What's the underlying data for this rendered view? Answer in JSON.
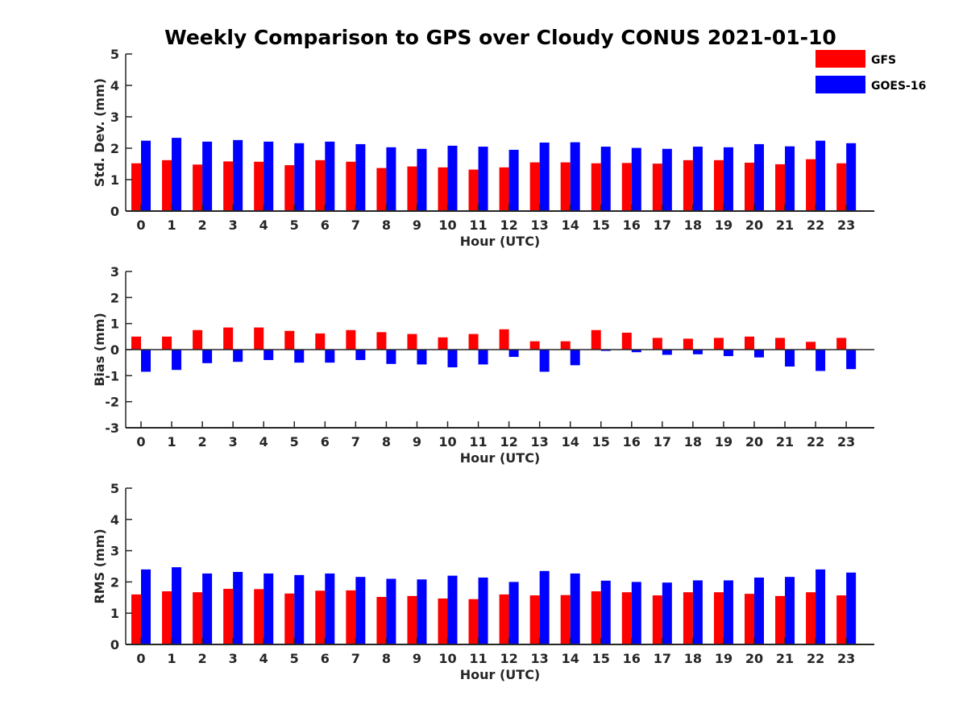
{
  "figure": {
    "title": "Weekly Comparison to GPS over Cloudy CONUS 2021-01-10"
  },
  "legend": {
    "placement": "top-right",
    "items": [
      {
        "label": "GFS",
        "color": "#ff0000"
      },
      {
        "label": "GOES-16",
        "color": "#0000ff"
      }
    ]
  },
  "chart_data": [
    {
      "type": "bar",
      "xlabel": "Hour (UTC)",
      "ylabel": "Std. Dev. (mm)",
      "ylim": [
        0,
        5
      ],
      "yticks": [
        0,
        1,
        2,
        3,
        4,
        5
      ],
      "categories": [
        "0",
        "1",
        "2",
        "3",
        "4",
        "5",
        "6",
        "7",
        "8",
        "9",
        "10",
        "11",
        "12",
        "13",
        "14",
        "15",
        "16",
        "17",
        "18",
        "19",
        "20",
        "21",
        "22",
        "23"
      ],
      "series": [
        {
          "name": "GFS",
          "color": "#ff0000",
          "values": [
            1.52,
            1.62,
            1.48,
            1.58,
            1.57,
            1.46,
            1.62,
            1.57,
            1.37,
            1.42,
            1.39,
            1.32,
            1.39,
            1.55,
            1.55,
            1.52,
            1.53,
            1.51,
            1.62,
            1.62,
            1.54,
            1.49,
            1.65,
            1.52
          ]
        },
        {
          "name": "GOES-16",
          "color": "#0000ff",
          "values": [
            2.24,
            2.33,
            2.21,
            2.26,
            2.21,
            2.16,
            2.21,
            2.13,
            2.03,
            1.98,
            2.08,
            2.05,
            1.95,
            2.18,
            2.19,
            2.05,
            2.01,
            1.98,
            2.05,
            2.03,
            2.13,
            2.06,
            2.24,
            2.16
          ]
        }
      ]
    },
    {
      "type": "bar",
      "xlabel": "Hour (UTC)",
      "ylabel": "Bias (mm)",
      "ylim": [
        -3,
        3
      ],
      "yticks": [
        -3,
        -2,
        -1,
        0,
        1,
        2,
        3
      ],
      "categories": [
        "0",
        "1",
        "2",
        "3",
        "4",
        "5",
        "6",
        "7",
        "8",
        "9",
        "10",
        "11",
        "12",
        "13",
        "14",
        "15",
        "16",
        "17",
        "18",
        "19",
        "20",
        "21",
        "22",
        "23"
      ],
      "series": [
        {
          "name": "GFS",
          "color": "#ff0000",
          "values": [
            0.5,
            0.5,
            0.75,
            0.85,
            0.85,
            0.72,
            0.62,
            0.75,
            0.67,
            0.6,
            0.47,
            0.6,
            0.78,
            0.32,
            0.32,
            0.75,
            0.65,
            0.45,
            0.42,
            0.45,
            0.5,
            0.45,
            0.3,
            0.45
          ]
        },
        {
          "name": "GOES-16",
          "color": "#0000ff",
          "values": [
            -0.85,
            -0.78,
            -0.52,
            -0.47,
            -0.4,
            -0.5,
            -0.5,
            -0.4,
            -0.55,
            -0.57,
            -0.68,
            -0.57,
            -0.28,
            -0.85,
            -0.6,
            -0.05,
            -0.1,
            -0.2,
            -0.18,
            -0.25,
            -0.3,
            -0.65,
            -0.82,
            -0.75
          ]
        }
      ]
    },
    {
      "type": "bar",
      "xlabel": "Hour (UTC)",
      "ylabel": "RMS (mm)",
      "ylim": [
        0,
        5
      ],
      "yticks": [
        0,
        1,
        2,
        3,
        4,
        5
      ],
      "categories": [
        "0",
        "1",
        "2",
        "3",
        "4",
        "5",
        "6",
        "7",
        "8",
        "9",
        "10",
        "11",
        "12",
        "13",
        "14",
        "15",
        "16",
        "17",
        "18",
        "19",
        "20",
        "21",
        "22",
        "23"
      ],
      "series": [
        {
          "name": "GFS",
          "color": "#ff0000",
          "values": [
            1.6,
            1.7,
            1.67,
            1.78,
            1.77,
            1.63,
            1.72,
            1.73,
            1.52,
            1.55,
            1.47,
            1.45,
            1.6,
            1.57,
            1.58,
            1.7,
            1.67,
            1.57,
            1.67,
            1.67,
            1.62,
            1.55,
            1.67,
            1.57
          ]
        },
        {
          "name": "GOES-16",
          "color": "#0000ff",
          "values": [
            2.4,
            2.47,
            2.27,
            2.32,
            2.27,
            2.22,
            2.27,
            2.16,
            2.1,
            2.08,
            2.2,
            2.14,
            2.0,
            2.35,
            2.27,
            2.04,
            2.0,
            1.98,
            2.05,
            2.05,
            2.14,
            2.16,
            2.4,
            2.3
          ]
        }
      ]
    }
  ]
}
